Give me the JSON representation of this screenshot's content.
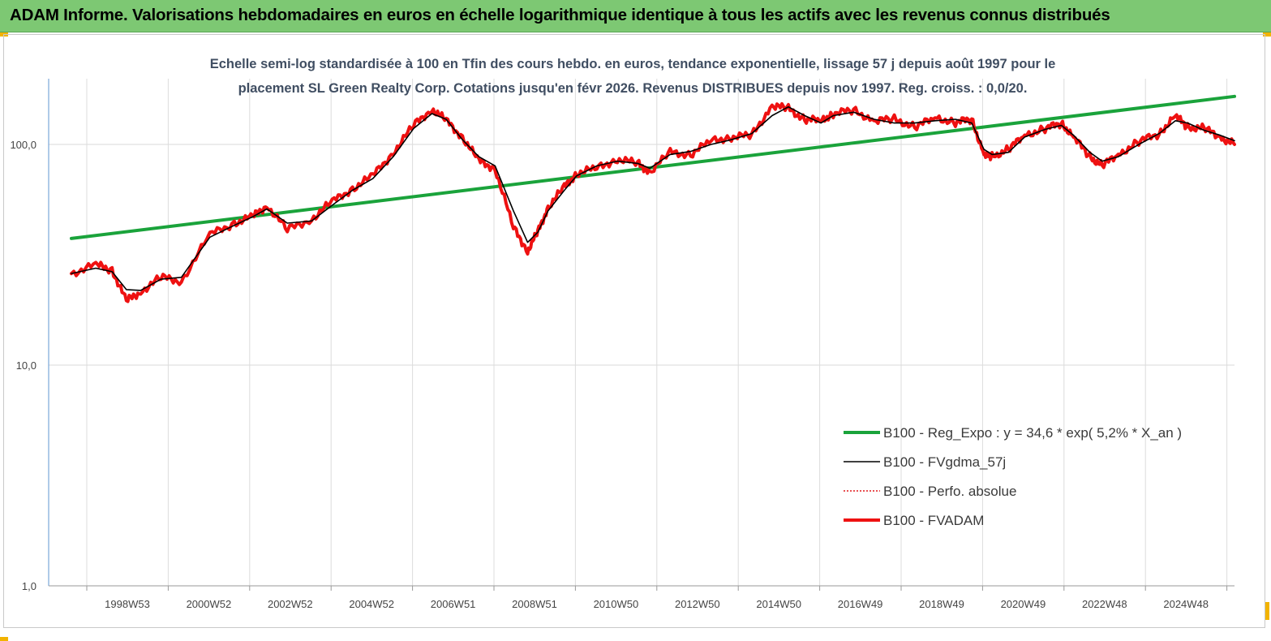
{
  "banner": {
    "title": "ADAM Informe. Valorisations hebdomadaires en euros en échelle logarithmique identique à tous les actifs avec les revenus connus distribués"
  },
  "chart_data": {
    "type": "line",
    "title_line1": "Echelle semi-log standardisée à 100 en Tfin des cours hebdo. en euros, tendance exponentielle, lissage 57 j depuis août 1997 pour le",
    "title_line2": "placement SL  Green Realty Corp. Cotations jusqu'en févr 2026.  Revenus DISTRIBUES  depuis nov 1997. Reg. croiss. : 0,0/20.",
    "y_scale": "log",
    "ylim": [
      1,
      180
    ],
    "y_ticks": [
      "100,0",
      "10,0",
      "1,0"
    ],
    "x_range": [
      1997.6,
      2026.15
    ],
    "x_ticks": [
      "1998W53",
      "2000W52",
      "2002W52",
      "2004W52",
      "2006W51",
      "2008W51",
      "2010W50",
      "2012W50",
      "2014W50",
      "2016W49",
      "2018W49",
      "2020W49",
      "2022W48",
      "2024W48"
    ],
    "grid": "vertical",
    "legend_position": "bottom-right",
    "series": [
      {
        "name": "B100 - Reg_Expo : y = 34,6 *  exp( 5,2% *   X_an )",
        "color": "#1aa33b",
        "style": "thick",
        "x": [
          1997.6,
          2026.15
        ],
        "y": [
          37.5,
          165
        ]
      },
      {
        "name": "B100 - FVgdma_57j",
        "color": "#000000",
        "style": "thin",
        "x": [
          1997.6,
          1998.2,
          1998.6,
          1998.95,
          1999.3,
          1999.8,
          2000.3,
          2001.0,
          2001.6,
          2002.05,
          2002.4,
          2002.9,
          2003.5,
          2004.0,
          2004.5,
          2005.0,
          2005.5,
          2006.0,
          2006.45,
          2006.8,
          2007.2,
          2007.6,
          2008.0,
          2008.45,
          2008.8,
          2009.05,
          2009.3,
          2009.7,
          2010.0,
          2010.5,
          2011.0,
          2011.5,
          2011.8,
          2012.3,
          2012.8,
          2013.3,
          2013.8,
          2014.3,
          2014.8,
          2015.2,
          2015.6,
          2016.0,
          2016.3,
          2016.8,
          2017.3,
          2017.8,
          2018.3,
          2018.8,
          2019.3,
          2019.7,
          2020.0,
          2020.2,
          2020.6,
          2021.0,
          2021.5,
          2021.9,
          2022.2,
          2022.6,
          2022.9,
          2023.3,
          2023.8,
          2024.3,
          2024.7,
          2025.0,
          2025.4,
          2025.8,
          2026.15
        ],
        "y": [
          26,
          27.5,
          26.5,
          22,
          21.8,
          24.5,
          25,
          38,
          43,
          47,
          51,
          44,
          45,
          53,
          62,
          70,
          88,
          118,
          138,
          130,
          105,
          88,
          80,
          50,
          36,
          40,
          50,
          62,
          72,
          80,
          84,
          82,
          78,
          90,
          93,
          100,
          105,
          112,
          135,
          148,
          135,
          125,
          135,
          140,
          130,
          125,
          125,
          128,
          130,
          125,
          95,
          90,
          92,
          108,
          117,
          122,
          110,
          92,
          84,
          88,
          100,
          112,
          128,
          125,
          116,
          110,
          104
        ]
      },
      {
        "name": "B100 - Perfo. absolue",
        "color": "#e0191b",
        "style": "dotted",
        "x": [],
        "y": []
      },
      {
        "name": "B100 - FVADAM",
        "color": "#ee1111",
        "style": "thick",
        "x": [
          1997.6,
          1998.2,
          1998.6,
          1998.95,
          1999.3,
          1999.8,
          2000.3,
          2001.0,
          2001.6,
          2002.05,
          2002.4,
          2002.9,
          2003.5,
          2004.0,
          2004.5,
          2005.0,
          2005.5,
          2006.0,
          2006.45,
          2006.8,
          2007.2,
          2007.6,
          2008.0,
          2008.45,
          2008.8,
          2009.05,
          2009.3,
          2009.7,
          2010.0,
          2010.5,
          2011.0,
          2011.5,
          2011.8,
          2012.3,
          2012.8,
          2013.3,
          2013.8,
          2014.3,
          2014.8,
          2015.2,
          2015.6,
          2016.0,
          2016.3,
          2016.8,
          2017.3,
          2017.8,
          2018.3,
          2018.8,
          2019.3,
          2019.7,
          2020.0,
          2020.2,
          2020.6,
          2021.0,
          2021.5,
          2021.9,
          2022.2,
          2022.6,
          2022.9,
          2023.3,
          2023.8,
          2024.3,
          2024.7,
          2025.0,
          2025.4,
          2025.8,
          2026.15
        ],
        "y": [
          26,
          28.5,
          27,
          19.5,
          21.5,
          25,
          24,
          39,
          44,
          47,
          53,
          41,
          46,
          55,
          63,
          72,
          92,
          122,
          145,
          128,
          108,
          84,
          78,
          42,
          33,
          40,
          52,
          64,
          74,
          78,
          86,
          82,
          75,
          92,
          90,
          104,
          108,
          110,
          150,
          145,
          130,
          128,
          138,
          143,
          128,
          130,
          120,
          132,
          126,
          130,
          90,
          88,
          95,
          110,
          118,
          125,
          108,
          88,
          80,
          90,
          103,
          112,
          135,
          120,
          118,
          108,
          100
        ]
      }
    ]
  }
}
